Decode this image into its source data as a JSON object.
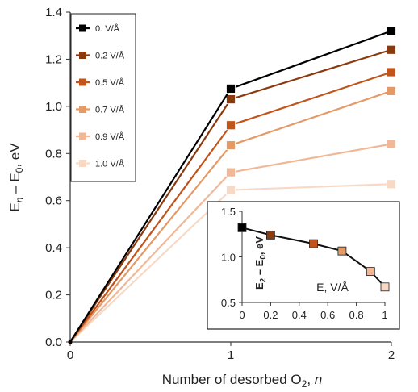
{
  "chart_data": [
    {
      "type": "line",
      "xlabel": "Number of desorbed O₂, n",
      "ylabel": "Eₙ – E₀, eV",
      "x": [
        0,
        1,
        2
      ],
      "xlim": [
        0,
        2
      ],
      "ylim": [
        0,
        1.4
      ],
      "xticks": [
        "0",
        "1",
        "2"
      ],
      "yticks": [
        "0.0",
        "0.2",
        "0.4",
        "0.6",
        "0.8",
        "1.0",
        "1.2",
        "1.4"
      ],
      "grid": false,
      "legend_position": "top-left",
      "series": [
        {
          "name": "0. V/Å",
          "color": "#000000",
          "values": [
            0,
            1.075,
            1.32
          ]
        },
        {
          "name": "0.2 V/Å",
          "color": "#8b3a0e",
          "values": [
            0,
            1.03,
            1.24
          ]
        },
        {
          "name": "0.5 V/Å",
          "color": "#c2541a",
          "values": [
            0,
            0.92,
            1.145
          ]
        },
        {
          "name": "0.7 V/Å",
          "color": "#e39a67",
          "values": [
            0,
            0.835,
            1.065
          ]
        },
        {
          "name": "0.9 V/Å",
          "color": "#f0b897",
          "values": [
            0,
            0.72,
            0.84
          ]
        },
        {
          "name": "1.0 V/Å",
          "color": "#f7d9c6",
          "values": [
            0,
            0.645,
            0.67
          ]
        }
      ]
    },
    {
      "type": "line",
      "xlabel": "E, V/Å",
      "ylabel": "E₂ – E₀, eV",
      "x": [
        0,
        0.2,
        0.5,
        0.7,
        0.9,
        1.0
      ],
      "values": [
        1.32,
        1.24,
        1.145,
        1.065,
        0.84,
        0.67
      ],
      "point_colors": [
        "#000000",
        "#8b3a0e",
        "#c2541a",
        "#e39a67",
        "#f0b897",
        "#f7d9c6"
      ],
      "xlim": [
        0,
        1
      ],
      "ylim": [
        0.5,
        1.5
      ],
      "xticks": [
        "0",
        "0.2",
        "0.4",
        "0.6",
        "0.8",
        "1"
      ],
      "yticks": [
        "0.5",
        "1.0",
        "1.5"
      ]
    }
  ]
}
